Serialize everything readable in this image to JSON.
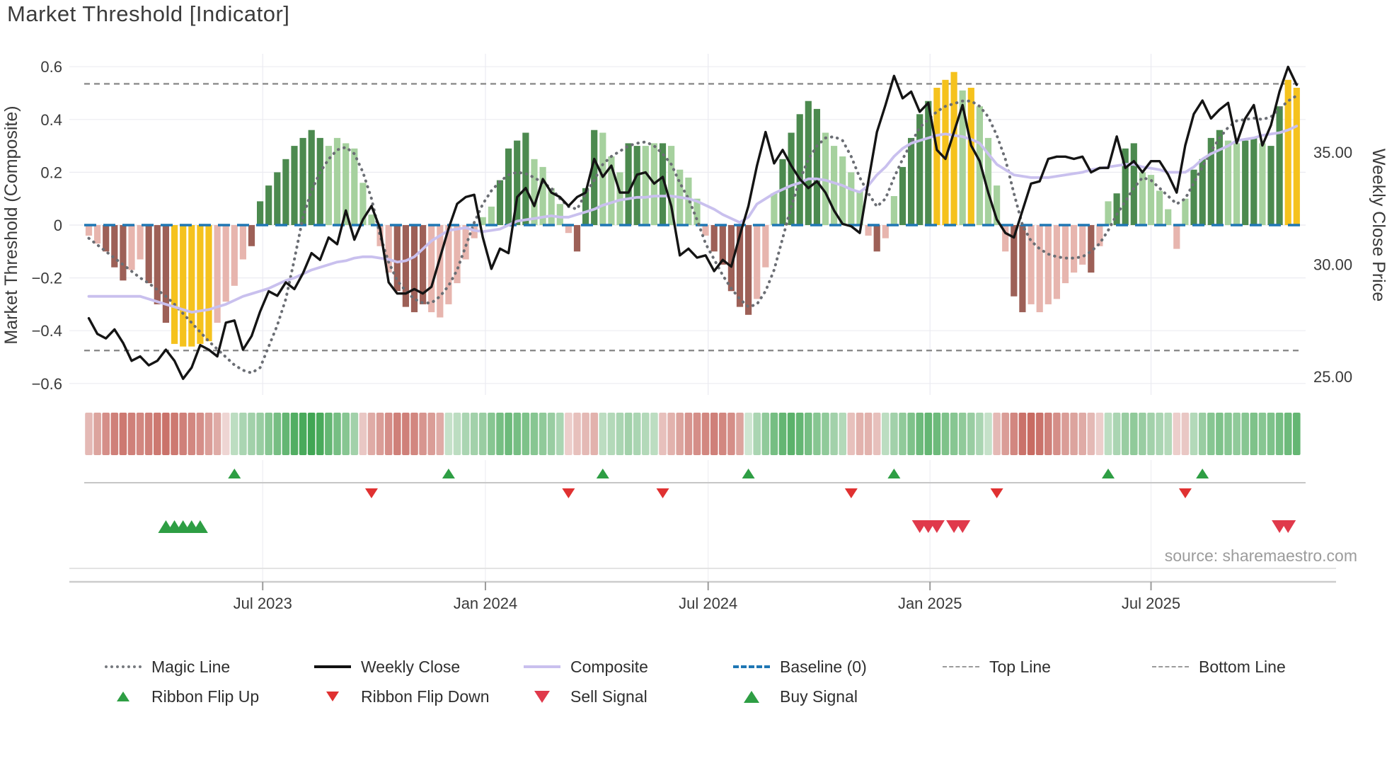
{
  "title": "Market Threshold [Indicator]",
  "source_note": "source: sharemaestro.com",
  "axes": {
    "left_title": "Market Threshold (Composite)",
    "right_title": "Weekly Close Price",
    "left_ticks": [
      {
        "label": "0.6",
        "value": 0.6
      },
      {
        "label": "0.4",
        "value": 0.4
      },
      {
        "label": "0.2",
        "value": 0.2
      },
      {
        "label": "0",
        "value": 0
      },
      {
        "label": "−0.2",
        "value": -0.2
      },
      {
        "label": "−0.4",
        "value": -0.4
      },
      {
        "label": "−0.6",
        "value": -0.6
      }
    ],
    "right_ticks": [
      {
        "label": "35.00",
        "price": 35
      },
      {
        "label": "30.00",
        "price": 30
      },
      {
        "label": "25.00",
        "price": 25
      }
    ],
    "x_ticks": [
      {
        "label": "Jul 2023",
        "week": 20.3
      },
      {
        "label": "Jan 2024",
        "week": 46.3
      },
      {
        "label": "Jul 2024",
        "week": 72.3
      },
      {
        "label": "Jan 2025",
        "week": 98.2
      },
      {
        "label": "Jul 2025",
        "week": 124.0
      }
    ]
  },
  "legend": {
    "row1": [
      {
        "label": "Magic Line",
        "swatch": "magic"
      },
      {
        "label": "Weekly Close",
        "swatch": "weekly"
      },
      {
        "label": "Composite",
        "swatch": "composite"
      },
      {
        "label": "Baseline (0)",
        "swatch": "baseline"
      },
      {
        "label": "Top Line",
        "swatch": "thinline"
      },
      {
        "label": "Bottom Line",
        "swatch": "thinline"
      }
    ],
    "row2": [
      {
        "label": "Ribbon Flip Up",
        "swatch": "tri-up-sm"
      },
      {
        "label": "Ribbon Flip Down",
        "swatch": "tri-dn-sm"
      },
      {
        "label": "Sell Signal",
        "swatch": "tri-dn-lg"
      },
      {
        "label": "Buy Signal",
        "swatch": "tri-up-lg"
      }
    ]
  },
  "colors": {
    "bar_dark_green": "#4c8a4f",
    "bar_light_green": "#a6d19e",
    "bar_dark_red": "#9d6057",
    "bar_light_red": "#e7b5ae",
    "bar_signal_yellow": "#f5c21d",
    "weekly_close_line": "#141414",
    "composite_line": "#c9c0ee",
    "magic_line": "#6b6e74",
    "baseline": "#1f77b4",
    "threshold_line": "#8b8b8b",
    "flip_up_marker": "#2e9e44",
    "flip_down_marker": "#e03131",
    "sell_marker": "#e0394b",
    "buy_marker": "#2e9e44",
    "ribbon_green_max": "#2f9e44",
    "ribbon_red_max": "#c0564c",
    "grid": "#ebebf1"
  },
  "chart_data": {
    "type": "combo",
    "frequency": "weekly",
    "n_weeks": 142,
    "title": "Market Threshold [Indicator]",
    "left_axis_label": "Market Threshold (Composite)",
    "right_axis_label": "Weekly Close Price",
    "left_axis_range": [
      -0.6,
      0.6
    ],
    "right_axis_ticks": [
      25,
      30,
      35
    ],
    "top_line": 0.535,
    "bottom_line": -0.475,
    "baseline": 0,
    "legend_position": "bottom",
    "grid": true,
    "bars": {
      "name": "Market Threshold (Composite)",
      "values": [
        -0.04,
        -0.07,
        -0.1,
        -0.16,
        -0.21,
        -0.17,
        -0.13,
        -0.22,
        -0.3,
        -0.37,
        -0.45,
        -0.46,
        -0.46,
        -0.45,
        -0.44,
        -0.37,
        -0.29,
        -0.23,
        -0.13,
        -0.08,
        0.09,
        0.15,
        0.2,
        0.25,
        0.3,
        0.33,
        0.36,
        0.33,
        0.3,
        0.33,
        0.31,
        0.29,
        0.16,
        0.04,
        -0.08,
        -0.18,
        -0.25,
        -0.31,
        -0.33,
        -0.3,
        -0.33,
        -0.35,
        -0.3,
        -0.22,
        -0.13,
        -0.05,
        0.03,
        0.07,
        0.17,
        0.29,
        0.32,
        0.35,
        0.25,
        0.22,
        0.14,
        0.08,
        -0.03,
        -0.1,
        0.14,
        0.36,
        0.35,
        0.26,
        0.2,
        0.31,
        0.3,
        0.3,
        0.31,
        0.31,
        0.3,
        0.21,
        0.18,
        0.1,
        -0.04,
        -0.1,
        -0.15,
        -0.25,
        -0.31,
        -0.34,
        -0.28,
        -0.16,
        0.12,
        0.25,
        0.35,
        0.42,
        0.47,
        0.44,
        0.35,
        0.3,
        0.26,
        0.2,
        0.13,
        -0.04,
        -0.1,
        -0.05,
        0.11,
        0.22,
        0.33,
        0.42,
        0.47,
        0.52,
        0.55,
        0.58,
        0.51,
        0.52,
        0.45,
        0.33,
        0.15,
        -0.1,
        -0.27,
        -0.33,
        -0.3,
        -0.33,
        -0.3,
        -0.28,
        -0.22,
        -0.18,
        -0.15,
        -0.18,
        -0.08,
        0.09,
        0.12,
        0.29,
        0.31,
        0.2,
        0.19,
        0.13,
        0.06,
        -0.09,
        0.1,
        0.21,
        0.25,
        0.33,
        0.36,
        0.32,
        0.31,
        0.32,
        0.33,
        0.31,
        0.3,
        0.45,
        0.55,
        0.52
      ],
      "colors": [
        "lr",
        "lr",
        "dr",
        "dr",
        "dr",
        "lr",
        "lr",
        "dr",
        "dr",
        "dr",
        "yl",
        "yl",
        "yl",
        "yl",
        "yl",
        "lr",
        "lr",
        "lr",
        "lr",
        "dr",
        "dg",
        "dg",
        "dg",
        "dg",
        "dg",
        "dg",
        "dg",
        "dg",
        "lg",
        "lg",
        "lg",
        "lg",
        "lg",
        "lg",
        "lr",
        "lr",
        "dr",
        "dr",
        "dr",
        "dr",
        "lr",
        "lr",
        "lr",
        "lr",
        "lr",
        "lr",
        "lg",
        "lg",
        "dg",
        "dg",
        "dg",
        "dg",
        "lg",
        "lg",
        "lg",
        "lg",
        "lr",
        "dr",
        "dg",
        "dg",
        "lg",
        "lg",
        "lg",
        "dg",
        "dg",
        "lg",
        "lg",
        "dg",
        "lg",
        "lg",
        "lg",
        "lg",
        "lr",
        "dr",
        "dr",
        "dr",
        "dr",
        "dr",
        "lr",
        "lr",
        "lg",
        "dg",
        "dg",
        "dg",
        "dg",
        "dg",
        "lg",
        "lg",
        "lg",
        "lg",
        "lg",
        "lr",
        "dr",
        "lr",
        "lg",
        "dg",
        "dg",
        "dg",
        "dg",
        "yl",
        "yl",
        "yl",
        "lg",
        "yl",
        "lg",
        "lg",
        "lg",
        "lr",
        "dr",
        "dr",
        "lr",
        "lr",
        "lr",
        "lr",
        "lr",
        "lr",
        "lr",
        "dr",
        "lr",
        "lg",
        "dg",
        "dg",
        "dg",
        "lg",
        "lg",
        "lg",
        "lg",
        "lr",
        "lg",
        "dg",
        "dg",
        "dg",
        "dg",
        "lg",
        "lg",
        "dg",
        "dg",
        "lg",
        "dg",
        "dg",
        "yl",
        "yl"
      ]
    },
    "ribbon": {
      "name": "Trend Ribbon",
      "values": [
        -0.3,
        -0.45,
        -0.6,
        -0.7,
        -0.75,
        -0.7,
        -0.65,
        -0.7,
        -0.75,
        -0.8,
        -0.75,
        -0.7,
        -0.65,
        -0.6,
        -0.5,
        -0.4,
        -0.1,
        0.2,
        0.3,
        0.35,
        0.4,
        0.5,
        0.6,
        0.7,
        0.8,
        0.85,
        0.9,
        0.85,
        0.7,
        0.6,
        0.5,
        0.35,
        -0.2,
        -0.4,
        -0.5,
        -0.6,
        -0.7,
        -0.7,
        -0.65,
        -0.55,
        -0.5,
        -0.4,
        0.15,
        0.2,
        0.3,
        0.35,
        0.4,
        0.5,
        0.6,
        0.65,
        0.6,
        0.55,
        0.5,
        0.45,
        0.4,
        0.3,
        -0.15,
        -0.25,
        -0.3,
        -0.35,
        0.2,
        0.25,
        0.3,
        0.35,
        0.3,
        0.25,
        0.2,
        -0.25,
        -0.35,
        -0.45,
        -0.55,
        -0.6,
        -0.65,
        -0.7,
        -0.65,
        -0.6,
        -0.45,
        0.1,
        0.3,
        0.45,
        0.6,
        0.7,
        0.75,
        0.7,
        0.6,
        0.5,
        0.45,
        0.35,
        0.25,
        -0.25,
        -0.35,
        -0.35,
        -0.25,
        0.2,
        0.35,
        0.45,
        0.55,
        0.65,
        0.7,
        0.65,
        0.55,
        0.5,
        0.45,
        0.4,
        0.3,
        0.15,
        -0.3,
        -0.5,
        -0.65,
        -0.8,
        -0.85,
        -0.8,
        -0.7,
        -0.6,
        -0.5,
        -0.45,
        -0.4,
        -0.3,
        -0.15,
        0.2,
        0.3,
        0.4,
        0.45,
        0.4,
        0.35,
        0.3,
        0.25,
        -0.15,
        -0.2,
        0.25,
        0.4,
        0.5,
        0.55,
        0.5,
        0.45,
        0.5,
        0.55,
        0.5,
        0.55,
        0.6,
        0.65,
        0.7
      ]
    },
    "series": [
      {
        "name": "Weekly Close",
        "axis": "right",
        "values": [
          27.6,
          26.9,
          26.7,
          27.1,
          26.5,
          25.7,
          25.9,
          25.5,
          25.7,
          26.2,
          25.7,
          24.9,
          25.4,
          26.4,
          26.2,
          25.9,
          27.4,
          27.5,
          26.2,
          26.8,
          27.9,
          28.8,
          28.6,
          29.2,
          28.9,
          29.6,
          30.5,
          30.2,
          31.2,
          30.9,
          32.4,
          31.1,
          32.0,
          32.6,
          31.6,
          29.2,
          28.7,
          28.7,
          28.9,
          28.7,
          29.0,
          30.3,
          31.6,
          32.7,
          33.0,
          33.1,
          31.2,
          29.8,
          30.7,
          30.5,
          33.0,
          33.4,
          32.6,
          33.8,
          33.2,
          33.0,
          32.6,
          33.0,
          33.2,
          34.7,
          33.9,
          34.4,
          33.2,
          33.2,
          34.0,
          34.1,
          33.6,
          33.9,
          32.6,
          30.4,
          30.7,
          30.3,
          30.4,
          29.7,
          30.2,
          29.9,
          31.3,
          32.6,
          34.4,
          35.9,
          34.5,
          35.1,
          34.4,
          33.8,
          33.4,
          33.7,
          33.2,
          32.4,
          31.8,
          31.7,
          31.4,
          33.7,
          35.9,
          37.1,
          38.4,
          37.4,
          37.7,
          36.8,
          37.2,
          35.1,
          34.7,
          35.9,
          37.1,
          35.3,
          34.6,
          33.2,
          32.0,
          31.4,
          31.2,
          32.4,
          33.6,
          33.7,
          34.7,
          34.8,
          34.8,
          34.7,
          34.8,
          34.1,
          34.3,
          34.3,
          35.7,
          34.3,
          34.6,
          34.1,
          34.6,
          34.6,
          34.0,
          33.2,
          35.3,
          36.7,
          37.3,
          36.5,
          36.9,
          37.2,
          35.4,
          36.5,
          37.1,
          35.3,
          36.2,
          37.7,
          38.8,
          38.0
        ]
      },
      {
        "name": "Composite",
        "axis": "left",
        "values": [
          -0.27,
          -0.27,
          -0.27,
          -0.27,
          -0.27,
          -0.27,
          -0.27,
          -0.28,
          -0.29,
          -0.3,
          -0.31,
          -0.32,
          -0.33,
          -0.325,
          -0.32,
          -0.31,
          -0.3,
          -0.285,
          -0.27,
          -0.26,
          -0.25,
          -0.24,
          -0.225,
          -0.21,
          -0.2,
          -0.185,
          -0.17,
          -0.16,
          -0.15,
          -0.14,
          -0.135,
          -0.125,
          -0.12,
          -0.12,
          -0.125,
          -0.13,
          -0.14,
          -0.135,
          -0.12,
          -0.09,
          -0.06,
          -0.04,
          -0.02,
          -0.015,
          -0.01,
          -0.02,
          -0.025,
          -0.02,
          -0.015,
          0.0,
          0.015,
          0.02,
          0.025,
          0.03,
          0.035,
          0.03,
          0.03,
          0.04,
          0.05,
          0.06,
          0.075,
          0.085,
          0.095,
          0.1,
          0.105,
          0.105,
          0.11,
          0.11,
          0.11,
          0.105,
          0.1,
          0.09,
          0.075,
          0.06,
          0.04,
          0.025,
          0.01,
          0.03,
          0.08,
          0.1,
          0.12,
          0.135,
          0.15,
          0.16,
          0.175,
          0.175,
          0.17,
          0.16,
          0.15,
          0.135,
          0.125,
          0.15,
          0.19,
          0.22,
          0.26,
          0.29,
          0.31,
          0.32,
          0.33,
          0.34,
          0.345,
          0.34,
          0.335,
          0.325,
          0.31,
          0.27,
          0.23,
          0.21,
          0.19,
          0.185,
          0.18,
          0.18,
          0.18,
          0.185,
          0.19,
          0.195,
          0.2,
          0.21,
          0.215,
          0.22,
          0.225,
          0.23,
          0.23,
          0.22,
          0.215,
          0.21,
          0.2,
          0.2,
          0.2,
          0.22,
          0.25,
          0.27,
          0.285,
          0.3,
          0.32,
          0.325,
          0.33,
          0.34,
          0.345,
          0.35,
          0.36,
          0.375
        ]
      },
      {
        "name": "Magic Line",
        "axis": "left",
        "values": [
          -0.05,
          -0.075,
          -0.1,
          -0.125,
          -0.15,
          -0.175,
          -0.2,
          -0.22,
          -0.245,
          -0.27,
          -0.3,
          -0.335,
          -0.37,
          -0.405,
          -0.44,
          -0.47,
          -0.5,
          -0.53,
          -0.55,
          -0.56,
          -0.54,
          -0.46,
          -0.38,
          -0.28,
          -0.13,
          0.03,
          0.13,
          0.2,
          0.25,
          0.285,
          0.295,
          0.27,
          0.2,
          0.1,
          -0.04,
          -0.14,
          -0.21,
          -0.25,
          -0.28,
          -0.295,
          -0.295,
          -0.27,
          -0.23,
          -0.17,
          -0.08,
          0.01,
          0.08,
          0.13,
          0.165,
          0.19,
          0.2,
          0.195,
          0.18,
          0.16,
          0.14,
          0.1,
          0.07,
          0.06,
          0.12,
          0.17,
          0.23,
          0.26,
          0.28,
          0.3,
          0.31,
          0.315,
          0.3,
          0.27,
          0.23,
          0.16,
          0.1,
          0.02,
          -0.07,
          -0.13,
          -0.19,
          -0.24,
          -0.28,
          -0.31,
          -0.3,
          -0.25,
          -0.17,
          -0.05,
          0.07,
          0.17,
          0.25,
          0.3,
          0.33,
          0.335,
          0.32,
          0.26,
          0.18,
          0.12,
          0.07,
          0.1,
          0.18,
          0.25,
          0.31,
          0.37,
          0.4,
          0.43,
          0.45,
          0.46,
          0.47,
          0.47,
          0.45,
          0.41,
          0.34,
          0.25,
          0.12,
          0.0,
          -0.06,
          -0.09,
          -0.11,
          -0.12,
          -0.125,
          -0.125,
          -0.12,
          -0.1,
          -0.07,
          -0.02,
          0.04,
          0.09,
          0.14,
          0.18,
          0.17,
          0.14,
          0.11,
          0.08,
          0.1,
          0.16,
          0.22,
          0.28,
          0.33,
          0.37,
          0.395,
          0.4,
          0.405,
          0.4,
          0.41,
          0.44,
          0.47,
          0.49
        ]
      }
    ],
    "signals": {
      "ribbon_flip_up_weeks": [
        17,
        42,
        60,
        77,
        94,
        119,
        130
      ],
      "ribbon_flip_down_weeks": [
        33,
        56,
        67,
        89,
        106,
        128
      ],
      "buy_signal_weeks": [
        9,
        10,
        11,
        12,
        13
      ],
      "sell_signal_weeks": [
        97,
        98,
        99,
        101,
        102,
        139,
        140
      ]
    }
  }
}
